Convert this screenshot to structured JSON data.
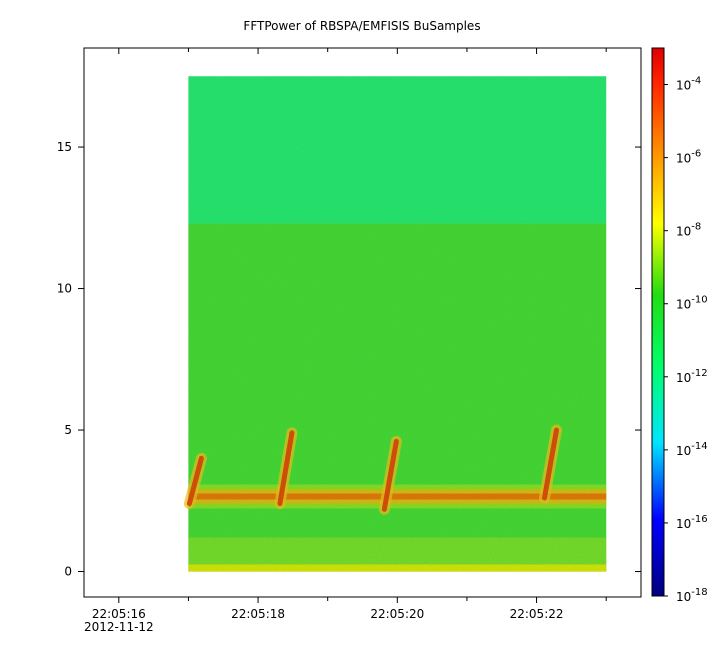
{
  "chart_data": {
    "type": "heatmap",
    "title": "FFTPower of RBSPA/EMFISIS  BuSamples",
    "xlabel": "",
    "ylabel": "",
    "x_ticks": [
      {
        "label": "22:05:16",
        "t": 16
      },
      {
        "label": "22:05:18",
        "t": 18
      },
      {
        "label": "22:05:20",
        "t": 20
      },
      {
        "label": "22:05:22",
        "t": 22
      }
    ],
    "x_date_label": "2012-11-12",
    "x_minor_ticks": [
      17,
      19,
      21,
      23
    ],
    "xlim": [
      15.5,
      23.5
    ],
    "ylim": [
      -0.9,
      18.5
    ],
    "y_ticks": [
      0,
      5,
      10,
      15
    ],
    "data_extent": {
      "t_start": 17.0,
      "t_end": 23.0,
      "y_min": 0,
      "y_max": 17.5
    },
    "noise_band_boundary": 12.3,
    "chorus_band": {
      "y_center": 2.65
    },
    "rising_tones": [
      {
        "t": 17.1,
        "y_low": 2.4,
        "y_high": 4.0
      },
      {
        "t": 18.4,
        "y_low": 2.4,
        "y_high": 4.9
      },
      {
        "t": 19.9,
        "y_low": 2.2,
        "y_high": 4.6
      },
      {
        "t": 22.2,
        "y_low": 2.6,
        "y_high": 5.0
      }
    ],
    "colorbar": {
      "scale": "log",
      "range": [
        1e-18,
        0.001
      ],
      "ticks": [
        {
          "base": "10",
          "exp": "-4",
          "value": 0.0001
        },
        {
          "base": "10",
          "exp": "-6",
          "value": 1e-06
        },
        {
          "base": "10",
          "exp": "-8",
          "value": 1e-08
        },
        {
          "base": "10",
          "exp": "-10",
          "value": 1e-10
        },
        {
          "base": "10",
          "exp": "-12",
          "value": 1e-12
        },
        {
          "base": "10",
          "exp": "-14",
          "value": 1e-14
        },
        {
          "base": "10",
          "exp": "-16",
          "value": 1e-16
        },
        {
          "base": "10",
          "exp": "-18",
          "value": 1e-18
        }
      ],
      "colors": [
        "#00007f",
        "#0000ff",
        "#00e5ff",
        "#00ff4c",
        "#1ed81e",
        "#ffff00",
        "#ff7f00",
        "#ff0000",
        "#dd0000"
      ]
    },
    "grid": false
  }
}
